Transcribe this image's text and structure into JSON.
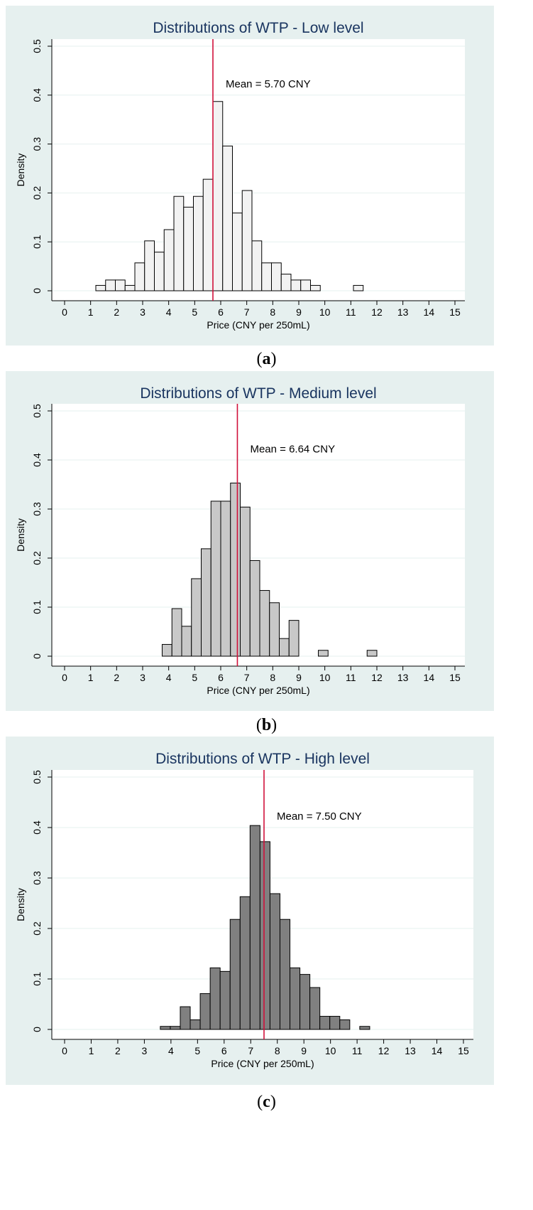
{
  "chart_data": [
    {
      "type": "bar",
      "panel_label": "a",
      "title": "Distributions of WTP - Low level",
      "xlabel": "Price (CNY per 250mL)",
      "ylabel": "Density",
      "xlim": [
        0,
        15
      ],
      "ylim": [
        0,
        0.5
      ],
      "xticks": [
        0,
        1,
        2,
        3,
        4,
        5,
        6,
        7,
        8,
        9,
        10,
        11,
        12,
        13,
        14,
        15
      ],
      "yticks": [
        0,
        0.1,
        0.2,
        0.3,
        0.4,
        0.5
      ],
      "bin_width": 0.375,
      "bar_fill": "#f2f2f2",
      "mean_value": 5.7,
      "mean_label": "Mean = 5.70 CNY",
      "bins": [
        {
          "x": 1.2,
          "density": 0.011
        },
        {
          "x": 1.575,
          "density": 0.022
        },
        {
          "x": 1.95,
          "density": 0.022
        },
        {
          "x": 2.325,
          "density": 0.011
        },
        {
          "x": 2.7,
          "density": 0.057
        },
        {
          "x": 3.075,
          "density": 0.102
        },
        {
          "x": 3.45,
          "density": 0.079
        },
        {
          "x": 3.825,
          "density": 0.125
        },
        {
          "x": 4.2,
          "density": 0.193
        },
        {
          "x": 4.575,
          "density": 0.171
        },
        {
          "x": 4.95,
          "density": 0.193
        },
        {
          "x": 5.325,
          "density": 0.228
        },
        {
          "x": 5.7,
          "density": 0.387
        },
        {
          "x": 6.075,
          "density": 0.296
        },
        {
          "x": 6.45,
          "density": 0.159
        },
        {
          "x": 6.825,
          "density": 0.205
        },
        {
          "x": 7.2,
          "density": 0.102
        },
        {
          "x": 7.575,
          "density": 0.057
        },
        {
          "x": 7.95,
          "density": 0.057
        },
        {
          "x": 8.325,
          "density": 0.034
        },
        {
          "x": 8.7,
          "density": 0.022
        },
        {
          "x": 9.075,
          "density": 0.022
        },
        {
          "x": 9.45,
          "density": 0.011
        },
        {
          "x": 11.1,
          "density": 0.011
        }
      ]
    },
    {
      "type": "bar",
      "panel_label": "b",
      "title": "Distributions of WTP - Medium level",
      "xlabel": "Price (CNY per 250mL)",
      "ylabel": "Density",
      "xlim": [
        0,
        15
      ],
      "ylim": [
        0,
        0.5
      ],
      "xticks": [
        0,
        1,
        2,
        3,
        4,
        5,
        6,
        7,
        8,
        9,
        10,
        11,
        12,
        13,
        14,
        15
      ],
      "yticks": [
        0,
        0.1,
        0.2,
        0.3,
        0.4,
        0.5
      ],
      "bin_width": 0.375,
      "bar_fill": "#c8c8c8",
      "mean_value": 6.64,
      "mean_label": "Mean = 6.64 CNY",
      "bins": [
        {
          "x": 3.75,
          "density": 0.024
        },
        {
          "x": 4.125,
          "density": 0.097
        },
        {
          "x": 4.5,
          "density": 0.061
        },
        {
          "x": 4.875,
          "density": 0.158
        },
        {
          "x": 5.25,
          "density": 0.219
        },
        {
          "x": 5.625,
          "density": 0.316
        },
        {
          "x": 6.0,
          "density": 0.316
        },
        {
          "x": 6.375,
          "density": 0.353
        },
        {
          "x": 6.75,
          "density": 0.304
        },
        {
          "x": 7.125,
          "density": 0.195
        },
        {
          "x": 7.5,
          "density": 0.134
        },
        {
          "x": 7.875,
          "density": 0.109
        },
        {
          "x": 8.25,
          "density": 0.036
        },
        {
          "x": 8.625,
          "density": 0.073
        },
        {
          "x": 9.75,
          "density": 0.012
        },
        {
          "x": 11.625,
          "density": 0.012
        }
      ]
    },
    {
      "type": "bar",
      "panel_label": "c",
      "title": "Distributions of WTP - High level",
      "xlabel": "Price (CNY per 250mL)",
      "ylabel": "Density",
      "xlim": [
        0,
        15
      ],
      "ylim": [
        0,
        0.5
      ],
      "xticks": [
        0,
        1,
        2,
        3,
        4,
        5,
        6,
        7,
        8,
        9,
        10,
        11,
        12,
        13,
        14,
        15
      ],
      "yticks": [
        0,
        0.1,
        0.2,
        0.3,
        0.4,
        0.5
      ],
      "bin_width": 0.375,
      "bar_fill": "#808080",
      "mean_value": 7.5,
      "mean_label": "Mean = 7.50 CNY",
      "bins": [
        {
          "x": 3.6,
          "density": 0.006
        },
        {
          "x": 3.975,
          "density": 0.006
        },
        {
          "x": 4.35,
          "density": 0.045
        },
        {
          "x": 4.725,
          "density": 0.019
        },
        {
          "x": 5.1,
          "density": 0.071
        },
        {
          "x": 5.475,
          "density": 0.122
        },
        {
          "x": 5.85,
          "density": 0.115
        },
        {
          "x": 6.225,
          "density": 0.218
        },
        {
          "x": 6.6,
          "density": 0.263
        },
        {
          "x": 6.975,
          "density": 0.404
        },
        {
          "x": 7.35,
          "density": 0.372
        },
        {
          "x": 7.725,
          "density": 0.269
        },
        {
          "x": 8.1,
          "density": 0.218
        },
        {
          "x": 8.475,
          "density": 0.122
        },
        {
          "x": 8.85,
          "density": 0.109
        },
        {
          "x": 9.225,
          "density": 0.083
        },
        {
          "x": 9.6,
          "density": 0.026
        },
        {
          "x": 9.975,
          "density": 0.026
        },
        {
          "x": 10.35,
          "density": 0.019
        },
        {
          "x": 11.1,
          "density": 0.006
        }
      ]
    }
  ],
  "colors": {
    "panel_bg": "#e6f0ef",
    "plot_bg": "#ffffff",
    "title": "#1a3560",
    "mean_line": "#d0103a",
    "grid": "#e6f0ef",
    "bar_stroke": "#000000"
  }
}
